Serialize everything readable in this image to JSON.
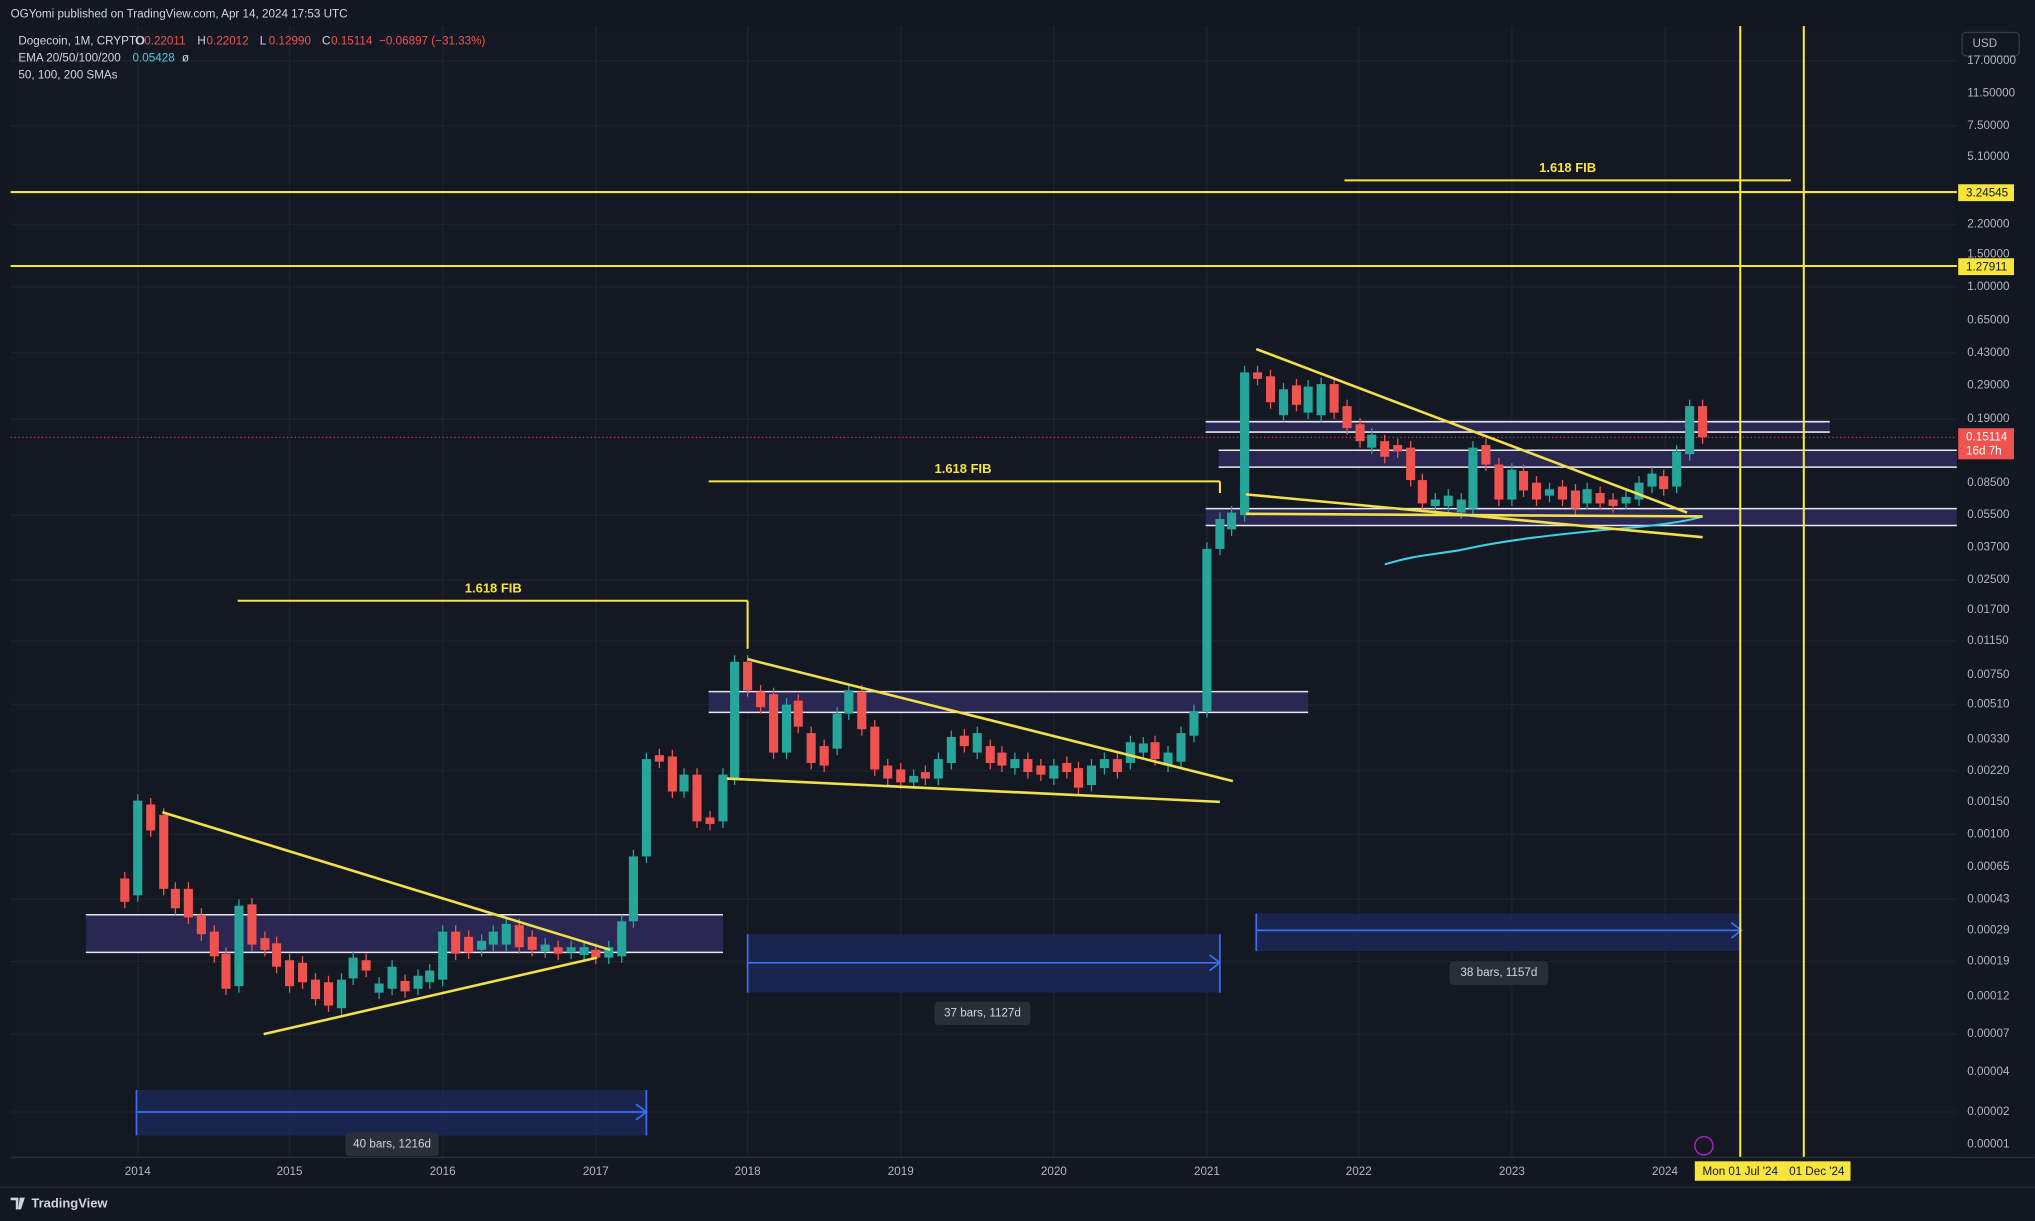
{
  "header": {
    "publisher": "OGYomi published on TradingView.com, Apr 14, 2024 17:53 UTC",
    "symbol": "Dogecoin, 1M, CRYPTO",
    "ohlc": [
      {
        "label": "O",
        "value": "0.22011"
      },
      {
        "label": "H",
        "value": "0.22012"
      },
      {
        "label": "L",
        "value": "0.12990"
      },
      {
        "label": "C",
        "value": "0.15114"
      }
    ],
    "change": "−0.06897 (−31.33%)",
    "ema_label": "EMA 20/50/100/200",
    "ema_value": "0.05428",
    "ema_extra": "ø",
    "sma_label": "50, 100, 200 SMAs"
  },
  "price_axis": {
    "currency": "USD",
    "labels": [
      "17.00000",
      "11.50000",
      "7.50000",
      "5.10000",
      "2.20000",
      "1.50000",
      "1.00000",
      "0.65000",
      "0.43000",
      "0.29000",
      "0.19000",
      "0.08500",
      "0.05500",
      "0.03700",
      "0.02500",
      "0.01700",
      "0.01150",
      "0.00750",
      "0.00510",
      "0.00330",
      "0.00220",
      "0.00150",
      "0.00100",
      "0.00065",
      "0.00043",
      "0.00029",
      "0.00019",
      "0.00012",
      "0.00007",
      "0.00004",
      "0.00002",
      "0.00001"
    ],
    "level_tags": [
      "3.24545",
      "1.27911"
    ],
    "last_price": "0.15114",
    "countdown": "16d 7h"
  },
  "time_axis": {
    "labels": [
      "2014",
      "2015",
      "2016",
      "2017",
      "2018",
      "2019",
      "2020",
      "2021",
      "2022",
      "2023",
      "2024"
    ],
    "date_tags": [
      "Mon 01 Jul '24",
      "01 Dec '24"
    ]
  },
  "annotations": {
    "fib_labels": [
      "1.618 FIB",
      "1.618 FIB",
      "1.618 FIB"
    ],
    "ranges": [
      "40 bars, 1216d",
      "37 bars, 1127d",
      "38 bars, 1157d"
    ]
  },
  "footer": {
    "brand": "TradingView"
  }
}
